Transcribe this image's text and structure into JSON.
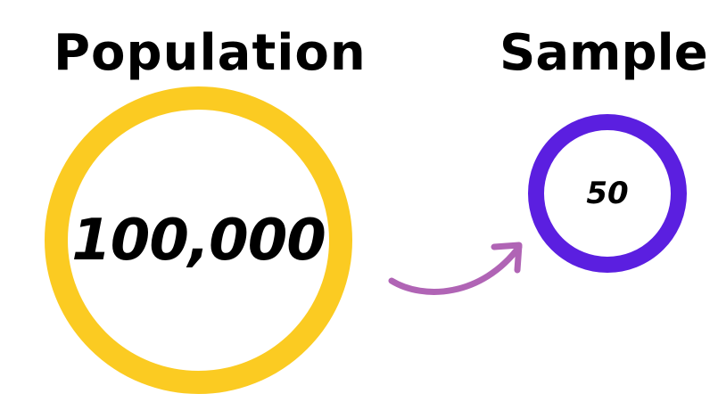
{
  "population": {
    "label": "Population",
    "value": "100,000",
    "ring_color": "#FBCB22"
  },
  "sample": {
    "label": "Sample",
    "value": "50",
    "ring_color": "#5B1FE0"
  },
  "arrow": {
    "color": "#B064B5",
    "icon": "curved-arrow-icon"
  }
}
